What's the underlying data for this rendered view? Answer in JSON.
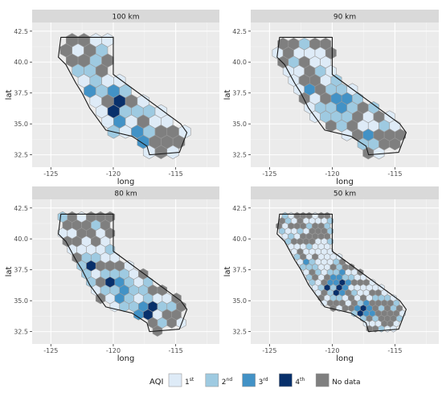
{
  "chart_data": [
    {
      "type": "heatmap",
      "title": "100 km",
      "xlabel": "long",
      "ylabel": "lat",
      "xlim": [
        -126.5,
        -111.5
      ],
      "ylim": [
        31.5,
        43.2
      ],
      "x_ticks": [
        -125,
        -120,
        -115
      ],
      "x_tick_labels": [
        "-125",
        "-120",
        "-115"
      ],
      "y_ticks": [
        32.5,
        35.0,
        37.5,
        40.0,
        42.5
      ],
      "y_tick_labels": [
        "32.5",
        "35.0",
        "37.5",
        "40.0",
        "42.5"
      ],
      "grid": true,
      "hex_spacing_deg": 0.95,
      "classes": [
        "1st",
        "2nd",
        "3rd",
        "4th",
        "No data"
      ]
    },
    {
      "type": "heatmap",
      "title": "90 km",
      "xlabel": "long",
      "ylabel": "lat",
      "xlim": [
        -126.5,
        -111.5
      ],
      "ylim": [
        31.5,
        43.2
      ],
      "x_ticks": [
        -125,
        -120,
        -115
      ],
      "x_tick_labels": [
        "-125",
        "-120",
        "-115"
      ],
      "y_ticks": [
        32.5,
        35.0,
        37.5,
        40.0,
        42.5
      ],
      "y_tick_labels": [
        "32.5",
        "35.0",
        "37.5",
        "40.0",
        "42.5"
      ],
      "grid": true,
      "hex_spacing_deg": 0.85,
      "classes": [
        "1st",
        "2nd",
        "3rd",
        "4th",
        "No data"
      ]
    },
    {
      "type": "heatmap",
      "title": "80 km",
      "xlabel": "long",
      "ylabel": "lat",
      "xlim": [
        -126.5,
        -111.5
      ],
      "ylim": [
        31.5,
        43.2
      ],
      "x_ticks": [
        -125,
        -120,
        -115
      ],
      "x_tick_labels": [
        "-125",
        "-120",
        "-115"
      ],
      "y_ticks": [
        32.5,
        35.0,
        37.5,
        40.0,
        42.5
      ],
      "y_tick_labels": [
        "32.5",
        "35.0",
        "37.5",
        "40.0",
        "42.5"
      ],
      "grid": true,
      "hex_spacing_deg": 0.76,
      "classes": [
        "1st",
        "2nd",
        "3rd",
        "4th",
        "No data"
      ]
    },
    {
      "type": "heatmap",
      "title": "50 km",
      "xlabel": "long",
      "ylabel": "lat",
      "xlim": [
        -126.5,
        -111.5
      ],
      "ylim": [
        31.5,
        43.2
      ],
      "x_ticks": [
        -125,
        -120,
        -115
      ],
      "x_tick_labels": [
        "-125",
        "-120",
        "-115"
      ],
      "y_ticks": [
        32.5,
        35.0,
        37.5,
        40.0,
        42.5
      ],
      "y_tick_labels": [
        "32.5",
        "35.0",
        "37.5",
        "40.0",
        "42.5"
      ],
      "grid": true,
      "hex_spacing_deg": 0.48,
      "classes": [
        "1st",
        "2nd",
        "3rd",
        "4th",
        "No data"
      ]
    }
  ],
  "state_outline": [
    [
      -124.2,
      42.0
    ],
    [
      -120.0,
      42.0
    ],
    [
      -120.0,
      39.0
    ],
    [
      -114.6,
      35.0
    ],
    [
      -114.1,
      34.3
    ],
    [
      -114.7,
      32.7
    ],
    [
      -117.1,
      32.5
    ],
    [
      -117.3,
      33.2
    ],
    [
      -118.5,
      34.0
    ],
    [
      -120.6,
      34.5
    ],
    [
      -121.9,
      36.3
    ],
    [
      -122.5,
      37.5
    ],
    [
      -123.0,
      38.3
    ],
    [
      -123.8,
      39.8
    ],
    [
      -124.4,
      40.4
    ],
    [
      -124.2,
      42.0
    ]
  ],
  "legend": {
    "title": "AQI",
    "items": [
      {
        "key": "1",
        "label": "1",
        "sup": "st",
        "color": "#deebf7"
      },
      {
        "key": "2",
        "label": "2",
        "sup": "nd",
        "color": "#9ecae1"
      },
      {
        "key": "3",
        "label": "3",
        "sup": "rd",
        "color": "#4292c6"
      },
      {
        "key": "4",
        "label": "4",
        "sup": "th",
        "color": "#08306b"
      },
      {
        "key": "none",
        "label": "No data",
        "sup": "",
        "color": "#7f7f7f"
      }
    ]
  },
  "colors": {
    "panel_bg": "#ebebeb",
    "grid_major": "#ffffff",
    "grid_minor": "#f5f5f5",
    "strip_bg": "#d9d9d9",
    "hex_border": "#9a9a9a",
    "outline": "#1a1a1a",
    "axis_text": "#4d4d4d",
    "label_text": "#1a1a1a"
  }
}
